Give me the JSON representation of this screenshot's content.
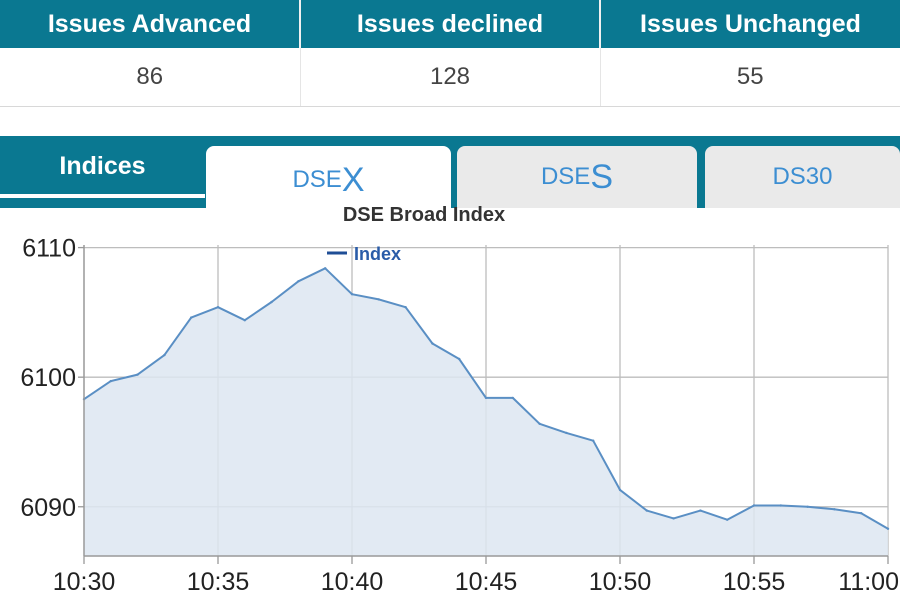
{
  "market_stats": {
    "headers": [
      "Issues Advanced",
      "Issues declined",
      "Issues Unchanged"
    ],
    "values": [
      "86",
      "128",
      "55"
    ]
  },
  "tabs": {
    "indices_label": "Indices",
    "items": [
      {
        "prefix": "DSE",
        "suffix": "X",
        "label": "DSEX",
        "active": true
      },
      {
        "prefix": "DSE",
        "suffix": "S",
        "label": "DSES",
        "active": false
      },
      {
        "prefix": "DS30",
        "suffix": "",
        "label": "DS30",
        "active": false
      }
    ]
  },
  "colors": {
    "header_teal": "#0a7891",
    "tab_text": "#3c8ed2",
    "series_line": "#5a8fc4",
    "series_fill": "#dde6f1",
    "legend_blue": "#1f4e96"
  },
  "chart_data": {
    "type": "area",
    "title": "DSE Broad Index",
    "xlabel": "",
    "ylabel": "",
    "x_ticks": [
      "10:30",
      "10:35",
      "10:40",
      "10:45",
      "10:50",
      "10:55",
      "11:00"
    ],
    "y_ticks": [
      6110,
      6100,
      6090
    ],
    "xlim": [
      "10:30",
      "11:00"
    ],
    "ylim": [
      6086.2,
      6110.2
    ],
    "grid": true,
    "legend_position": "top-center",
    "series": [
      {
        "name": "Index",
        "points": [
          [
            "10:30",
            6098.3
          ],
          [
            "10:31",
            6099.7
          ],
          [
            "10:32",
            6100.2
          ],
          [
            "10:33",
            6101.7
          ],
          [
            "10:34",
            6104.6
          ],
          [
            "10:35",
            6105.4
          ],
          [
            "10:36",
            6104.4
          ],
          [
            "10:37",
            6105.8
          ],
          [
            "10:38",
            6107.4
          ],
          [
            "10:39",
            6108.4
          ],
          [
            "10:40",
            6106.4
          ],
          [
            "10:41",
            6106.0
          ],
          [
            "10:42",
            6105.4
          ],
          [
            "10:43",
            6102.6
          ],
          [
            "10:44",
            6101.4
          ],
          [
            "10:45",
            6098.4
          ],
          [
            "10:46",
            6098.4
          ],
          [
            "10:47",
            6096.4
          ],
          [
            "10:48",
            6095.7
          ],
          [
            "10:49",
            6095.1
          ],
          [
            "10:50",
            6091.3
          ],
          [
            "10:51",
            6089.7
          ],
          [
            "10:52",
            6089.1
          ],
          [
            "10:53",
            6089.7
          ],
          [
            "10:54",
            6089.0
          ],
          [
            "10:55",
            6090.1
          ],
          [
            "10:56",
            6090.1
          ],
          [
            "10:57",
            6090.0
          ],
          [
            "10:58",
            6089.8
          ],
          [
            "10:59",
            6089.5
          ],
          [
            "11:00",
            6088.3
          ]
        ]
      }
    ]
  }
}
